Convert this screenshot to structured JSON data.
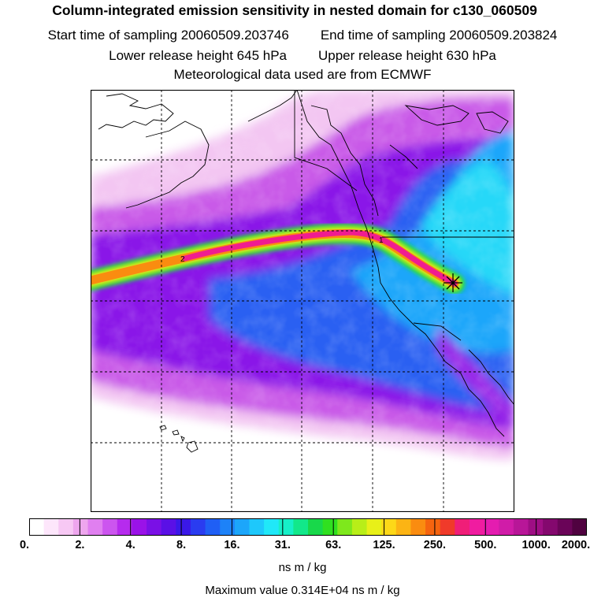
{
  "header": {
    "title": "Column-integrated emission sensitivity in nested domain for c130_060509",
    "start_label": "Start time of sampling 20060509.203746",
    "end_label": "End time of sampling 20060509.203824",
    "lower_label": "Lower release height  645 hPa",
    "upper_label": "Upper release height  630 hPa",
    "met_label": "Meteorological data used are from ECMWF"
  },
  "map": {
    "trajectory_labels": [
      "2",
      "1"
    ],
    "release_marker": "release-point-star"
  },
  "colorbar": {
    "tick_labels": [
      "0.",
      "2.",
      "4.",
      "8.",
      "16.",
      "31.",
      "63.",
      "125.",
      "250.",
      "500.",
      "1000.",
      "2000."
    ],
    "colors": [
      "#ffffff",
      "#fde6fb",
      "#f7c8f4",
      "#eea6ee",
      "#e07ff0",
      "#cc55ef",
      "#b62bee",
      "#9a12e8",
      "#7a10e6",
      "#5a10e6",
      "#3a18e8",
      "#2a3cf0",
      "#1f5ff5",
      "#1d82f8",
      "#1ca6fa",
      "#1ec8fb",
      "#20e8f8",
      "#16f0c8",
      "#12e88a",
      "#18d84a",
      "#30e020",
      "#7ee81c",
      "#b8ee18",
      "#e8f018",
      "#fdd818",
      "#fcb414",
      "#fa8c10",
      "#f5640f",
      "#f03a2a",
      "#f01e78",
      "#f01ca0",
      "#e41cb0",
      "#d01ca8",
      "#b81698",
      "#9e0e84",
      "#84086e",
      "#6a0458",
      "#500240"
    ],
    "units": "ns m / kg",
    "max_value": "Maximum value  0.314E+04 ns m / kg"
  }
}
